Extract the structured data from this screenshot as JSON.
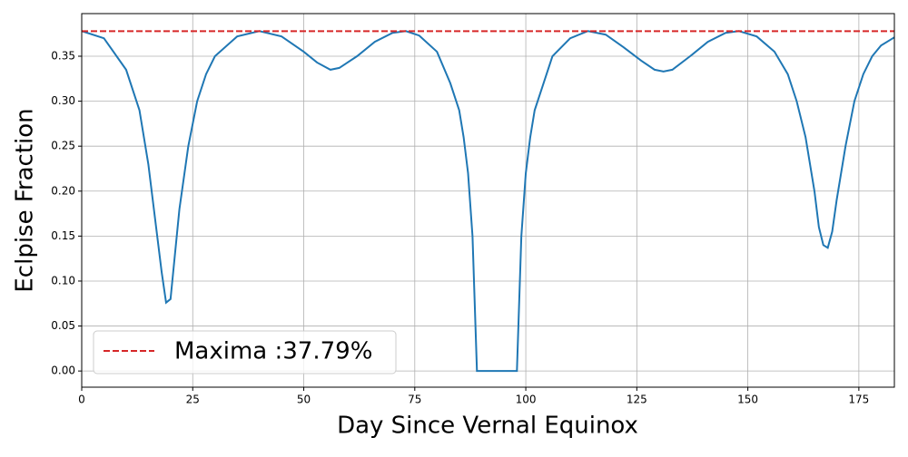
{
  "chart_data": {
    "type": "line",
    "x_label": "Day Since Vernal Equinox",
    "y_label": "Eclpise Fraction",
    "x": [
      0,
      5,
      10,
      13,
      15,
      17,
      18,
      19,
      20,
      21,
      22,
      24,
      26,
      28,
      30,
      35,
      40,
      45,
      50,
      53,
      56,
      58,
      62,
      66,
      70,
      73,
      76,
      80,
      83,
      85,
      86,
      87,
      88,
      89,
      98,
      99,
      100,
      101,
      102,
      104,
      106,
      110,
      114,
      118,
      122,
      126,
      129,
      131,
      133,
      137,
      141,
      145,
      148,
      152,
      156,
      159,
      161,
      163,
      165,
      166,
      167,
      168,
      169,
      170,
      172,
      174,
      176,
      178,
      180,
      183
    ],
    "series": [
      {
        "name": null,
        "color": "#1f77b4",
        "values": [
          0.378,
          0.37,
          0.335,
          0.29,
          0.23,
          0.15,
          0.11,
          0.076,
          0.08,
          0.13,
          0.18,
          0.25,
          0.3,
          0.33,
          0.35,
          0.372,
          0.378,
          0.372,
          0.355,
          0.343,
          0.335,
          0.337,
          0.35,
          0.366,
          0.376,
          0.378,
          0.373,
          0.355,
          0.32,
          0.29,
          0.26,
          0.22,
          0.15,
          0,
          0,
          0.15,
          0.22,
          0.26,
          0.29,
          0.32,
          0.35,
          0.37,
          0.378,
          0.374,
          0.36,
          0.345,
          0.335,
          0.333,
          0.335,
          0.35,
          0.366,
          0.376,
          0.378,
          0.372,
          0.355,
          0.33,
          0.3,
          0.26,
          0.2,
          0.16,
          0.14,
          0.137,
          0.155,
          0.19,
          0.25,
          0.3,
          0.33,
          0.35,
          0.362,
          0.371
        ]
      }
    ],
    "hline": {
      "name": "Maxima :37.79%",
      "value": 0.3779,
      "color": "#d62728"
    },
    "xlim": [
      0,
      183
    ],
    "ylim": [
      -0.018,
      0.3974
    ],
    "xticks": [
      0,
      25,
      50,
      75,
      100,
      125,
      150,
      175
    ],
    "yticks": [
      {
        "value": 0,
        "label": "0.00"
      },
      0.05,
      {
        "value": 0.1,
        "label": "0.10"
      },
      0.15,
      {
        "value": 0.2,
        "label": "0.20"
      },
      0.25,
      {
        "value": 0.3,
        "label": "0.30"
      },
      0.35
    ],
    "grid": true,
    "legend": "lower left"
  }
}
